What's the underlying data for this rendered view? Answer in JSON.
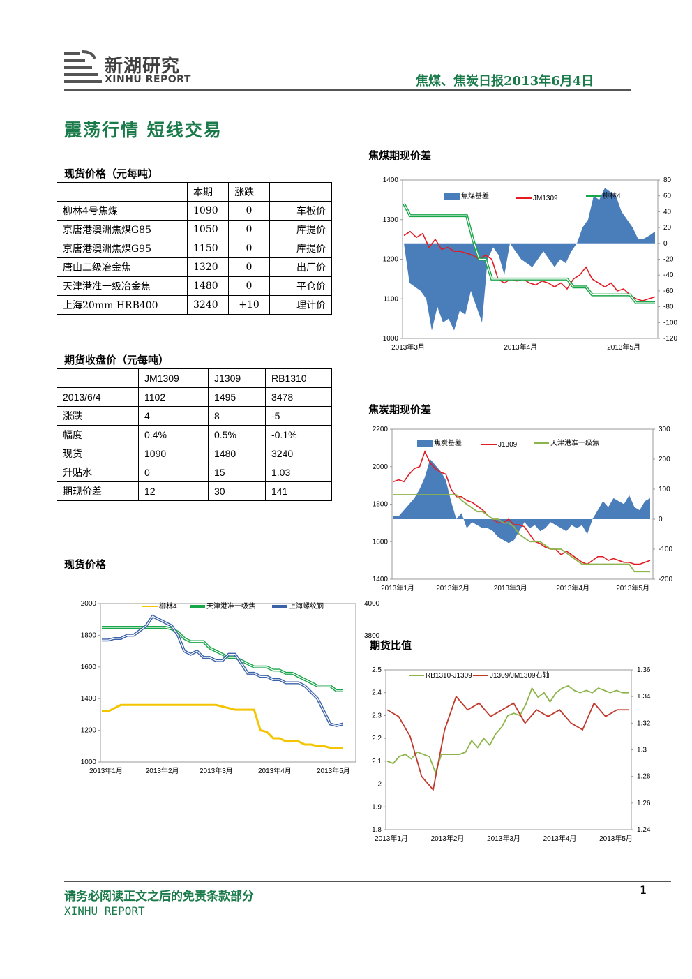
{
  "header": {
    "logo_cn": "新湖研究",
    "logo_en": "XINHU REPORT",
    "report_title": "焦煤、焦炭日报2013年6月4日"
  },
  "headline": "震荡行情 短线交易",
  "spot_section": {
    "title": "现货价格（元每吨）",
    "headers": [
      "",
      "本期",
      "涨跌",
      ""
    ],
    "rows": [
      [
        "柳林4号焦煤",
        "1090",
        "0",
        "车板价"
      ],
      [
        "京唐港澳洲焦煤G85",
        "1050",
        "0",
        "库提价"
      ],
      [
        "京唐港澳洲焦煤G95",
        "1150",
        "0",
        "库提价"
      ],
      [
        "唐山二级冶金焦",
        "1320",
        "0",
        "出厂价"
      ],
      [
        "天津港准一级冶金焦",
        "1480",
        "0",
        "平仓价"
      ],
      [
        "上海20mm HRB400",
        "3240",
        "+10",
        "理计价"
      ]
    ]
  },
  "futures_section": {
    "title": "期货收盘价（元每吨）",
    "headers": [
      "",
      "JM1309",
      "J1309",
      "RB1310"
    ],
    "rows": [
      [
        "2013/6/4",
        "1102",
        "1495",
        "3478"
      ],
      [
        "涨跌",
        "4",
        "8",
        "-5"
      ],
      [
        "幅度",
        "0.4%",
        "0.5%",
        "-0.1%"
      ],
      [
        "现货",
        "1090",
        "1480",
        "3240"
      ],
      [
        "升贴水",
        "0",
        "15",
        "1.03"
      ],
      [
        "期现价差",
        "12",
        "30",
        "141"
      ]
    ]
  },
  "spot_chart_title": "现货价格",
  "coal_chart_title": "焦煤期现价差",
  "coke_chart_title": "焦炭期现价差",
  "ratio_chart_title": "期货比值",
  "footer": {
    "note": "请务必阅读正文之后的免责条款部分",
    "brand": "XINHU REPORT",
    "page": "1"
  },
  "colors": {
    "brand_green": "#1a7a4a",
    "bar_blue": "#4a7ebb",
    "red": "#e31b23",
    "green": "#1aa64a",
    "yellow": "#f5c400",
    "steel": "#3b62a8",
    "olive": "#8db44a",
    "darkred": "#c0392b"
  },
  "chart_data": [
    {
      "type": "area",
      "title": "焦煤期现价差",
      "categories_x": [
        "2013年3月",
        "2013年4月",
        "2013年5月"
      ],
      "y_left": [
        1000,
        1100,
        1200,
        1300,
        1400
      ],
      "y_right": [
        -120,
        -100,
        -80,
        -60,
        -40,
        -20,
        0,
        20,
        40,
        60,
        80
      ],
      "ylim_left": [
        1000,
        1400
      ],
      "ylim_right": [
        -120,
        80
      ],
      "legend": [
        "焦煤基差",
        "JM1309",
        "柳林4"
      ],
      "series": [
        {
          "name": "焦煤基差",
          "axis": "right",
          "values": [
            0,
            -50,
            -55,
            -60,
            -70,
            -110,
            -80,
            -100,
            -95,
            -110,
            -85,
            -90,
            -60,
            -80,
            -100,
            -20,
            -5,
            -15,
            -40,
            0,
            -10,
            -20,
            -25,
            -30,
            -20,
            -10,
            -20,
            -30,
            -20,
            -25,
            -10,
            0,
            20,
            30,
            60,
            55,
            70,
            65,
            60,
            40,
            30,
            20,
            5,
            6,
            10,
            15
          ]
        },
        {
          "name": "JM1309",
          "axis": "left",
          "values": [
            1260,
            1270,
            1255,
            1265,
            1230,
            1250,
            1225,
            1230,
            1220,
            1220,
            1215,
            1210,
            1200,
            1210,
            1200,
            1150,
            1140,
            1150,
            1145,
            1150,
            1140,
            1135,
            1145,
            1140,
            1130,
            1140,
            1125,
            1150,
            1160,
            1180,
            1150,
            1140,
            1130,
            1140,
            1120,
            1125,
            1110,
            1100,
            1095,
            1100,
            1105
          ]
        },
        {
          "name": "柳林4",
          "axis": "left",
          "values": [
            1340,
            1310,
            1310,
            1310,
            1310,
            1310,
            1310,
            1310,
            1310,
            1310,
            1310,
            1250,
            1200,
            1200,
            1150,
            1150,
            1150,
            1150,
            1150,
            1150,
            1150,
            1150,
            1150,
            1150,
            1150,
            1150,
            1150,
            1130,
            1130,
            1130,
            1110,
            1110,
            1110,
            1110,
            1110,
            1110,
            1110,
            1090,
            1090,
            1090,
            1090
          ]
        }
      ]
    },
    {
      "type": "area",
      "title": "焦炭期现价差",
      "categories_x": [
        "2013年1月",
        "2013年2月",
        "2013年3月",
        "2013年4月",
        "2013年5月"
      ],
      "y_left": [
        1400,
        1600,
        1800,
        2000,
        2200
      ],
      "y_right": [
        -200,
        -100,
        0,
        100,
        200,
        300
      ],
      "ylim_left": [
        1400,
        2200
      ],
      "ylim_right": [
        -200,
        300
      ],
      "legend": [
        "焦炭基差",
        "J1309",
        "天津港准一级焦"
      ],
      "series": [
        {
          "name": "焦炭基差",
          "axis": "right",
          "values": [
            10,
            10,
            30,
            50,
            70,
            100,
            140,
            200,
            180,
            160,
            130,
            60,
            0,
            20,
            -30,
            -10,
            -20,
            -30,
            -30,
            -40,
            -60,
            -70,
            -80,
            -70,
            -40,
            -10,
            -30,
            -20,
            -40,
            -30,
            -10,
            -20,
            -30,
            -40,
            -20,
            -30,
            -20,
            -50,
            0,
            30,
            60,
            40,
            70,
            60,
            50,
            80,
            40,
            30,
            60,
            70
          ]
        },
        {
          "name": "J1309",
          "axis": "left",
          "values": [
            1920,
            1930,
            1920,
            1960,
            1990,
            2000,
            2080,
            2020,
            1990,
            1970,
            1960,
            1880,
            1840,
            1840,
            1820,
            1810,
            1790,
            1770,
            1740,
            1720,
            1700,
            1700,
            1720,
            1690,
            1690,
            1680,
            1640,
            1600,
            1590,
            1570,
            1560,
            1560,
            1530,
            1550,
            1530,
            1510,
            1490,
            1480,
            1500,
            1520,
            1520,
            1500,
            1510,
            1500,
            1490,
            1490,
            1480,
            1480,
            1490,
            1500
          ]
        },
        {
          "name": "天津港准一级焦",
          "axis": "left",
          "values": [
            1850,
            1850,
            1850,
            1850,
            1850,
            1850,
            1850,
            1850,
            1850,
            1850,
            1850,
            1850,
            1850,
            1820,
            1800,
            1780,
            1760,
            1760,
            1740,
            1720,
            1720,
            1700,
            1700,
            1680,
            1640,
            1620,
            1600,
            1600,
            1600,
            1580,
            1560,
            1560,
            1560,
            1540,
            1520,
            1500,
            1480,
            1480,
            1480,
            1480,
            1480,
            1480,
            1480,
            1480,
            1480,
            1480,
            1440,
            1440,
            1440,
            1440
          ]
        }
      ]
    },
    {
      "type": "line",
      "title": "现货价格",
      "categories_x": [
        "2013年1月",
        "2013年2月",
        "2013年3月",
        "2013年4月",
        "2013年5月"
      ],
      "y_left": [
        1000,
        1200,
        1400,
        1600,
        1800,
        2000
      ],
      "y_right": [
        "4000",
        "3800"
      ],
      "ylim_left": [
        1000,
        2000
      ],
      "legend": [
        "柳林4",
        "天津港准一级焦",
        "上海螺纹钢"
      ],
      "series": [
        {
          "name": "柳林4",
          "axis": "left",
          "values": [
            1320,
            1320,
            1340,
            1360,
            1360,
            1360,
            1360,
            1360,
            1360,
            1360,
            1360,
            1360,
            1360,
            1360,
            1360,
            1360,
            1360,
            1360,
            1360,
            1350,
            1340,
            1330,
            1330,
            1330,
            1330,
            1200,
            1190,
            1150,
            1150,
            1130,
            1130,
            1130,
            1110,
            1110,
            1100,
            1100,
            1090,
            1090,
            1090
          ]
        },
        {
          "name": "天津港准一级焦",
          "axis": "left",
          "values": [
            1850,
            1850,
            1850,
            1850,
            1850,
            1850,
            1850,
            1850,
            1850,
            1850,
            1850,
            1840,
            1820,
            1780,
            1760,
            1760,
            1760,
            1720,
            1700,
            1680,
            1660,
            1660,
            1640,
            1620,
            1600,
            1600,
            1600,
            1580,
            1580,
            1560,
            1560,
            1540,
            1520,
            1500,
            1480,
            1480,
            1480,
            1450,
            1450
          ]
        },
        {
          "name": "上海螺纹钢",
          "axis": "left",
          "values": [
            1770,
            1770,
            1780,
            1780,
            1800,
            1800,
            1830,
            1860,
            1920,
            1900,
            1880,
            1860,
            1800,
            1700,
            1680,
            1700,
            1660,
            1660,
            1640,
            1640,
            1680,
            1680,
            1620,
            1560,
            1560,
            1540,
            1540,
            1520,
            1520,
            1500,
            1500,
            1500,
            1480,
            1440,
            1400,
            1320,
            1240,
            1230,
            1240
          ]
        }
      ]
    },
    {
      "type": "line",
      "title": "期货比值",
      "categories_x": [
        "2013年1月",
        "2013年2月",
        "2013年3月",
        "2013年4月",
        "2013年5月"
      ],
      "y_left": [
        1.8,
        1.9,
        2,
        2.1,
        2.2,
        2.3,
        2.4,
        2.5
      ],
      "y_right": [
        1.24,
        1.26,
        1.28,
        1.3,
        1.32,
        1.34,
        1.36
      ],
      "ylim_left": [
        1.8,
        2.5
      ],
      "ylim_right": [
        1.24,
        1.36
      ],
      "legend": [
        "RB1310-J1309",
        "J1309/JM1309右轴"
      ],
      "series": [
        {
          "name": "RB1310-J1309",
          "axis": "left",
          "values": [
            2.1,
            2.09,
            2.12,
            2.13,
            2.11,
            2.14,
            2.13,
            2.12,
            2.05,
            2.13,
            2.13,
            2.13,
            2.13,
            2.14,
            2.19,
            2.16,
            2.2,
            2.17,
            2.22,
            2.25,
            2.3,
            2.31,
            2.3,
            2.35,
            2.42,
            2.38,
            2.4,
            2.36,
            2.4,
            2.42,
            2.43,
            2.41,
            2.4,
            2.41,
            2.4,
            2.42,
            2.41,
            2.4,
            2.41,
            2.4,
            2.4
          ]
        },
        {
          "name": "J1309/JM1309右轴",
          "axis": "right",
          "values": [
            1.33,
            1.325,
            1.31,
            1.28,
            1.27,
            1.315,
            1.34,
            1.33,
            1.335,
            1.325,
            1.33,
            1.335,
            1.32,
            1.33,
            1.325,
            1.33,
            1.32,
            1.315,
            1.335,
            1.325,
            1.33,
            1.33
          ]
        }
      ]
    }
  ]
}
